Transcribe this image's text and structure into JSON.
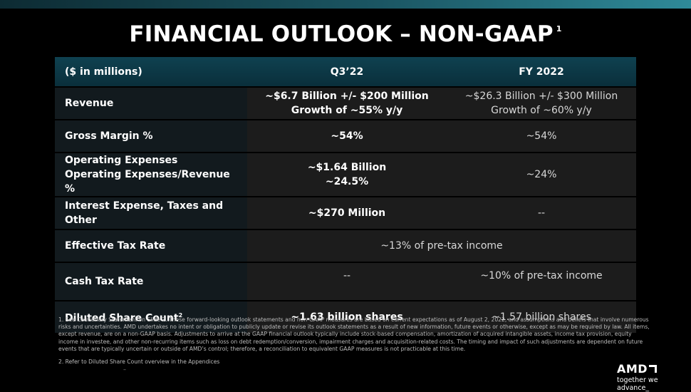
{
  "slide": {
    "title": "FINANCIAL OUTLOOK – NON-GAAP",
    "title_footnote_marker": "1"
  },
  "table": {
    "headers": [
      "($ in millions)",
      "Q3’22",
      "FY 2022"
    ],
    "rows": [
      {
        "label": [
          "Revenue"
        ],
        "q3": [
          "~$6.7 Billion +/- $200 Million",
          "Growth of ~55% y/y"
        ],
        "fy": [
          "~$26.3 Billion +/- $300 Million",
          "Growth of ~60% y/y"
        ]
      },
      {
        "label": [
          "Gross Margin %"
        ],
        "q3": [
          "~54%"
        ],
        "fy": [
          "~54%"
        ]
      },
      {
        "label": [
          "Operating Expenses",
          "Operating Expenses/Revenue %"
        ],
        "q3": [
          "~$1.64 Billion",
          "~24.5%"
        ],
        "fy": [
          "~24%"
        ]
      },
      {
        "label": [
          "Interest Expense, Taxes and Other"
        ],
        "q3": [
          "~$270 Million"
        ],
        "fy": [
          "--"
        ]
      },
      {
        "label": [
          "Effective Tax Rate"
        ],
        "merged": "~13% of pre-tax income"
      },
      {
        "label": [
          "Cash Tax Rate"
        ],
        "q3": [
          "--"
        ],
        "fy": [
          "~10% of pre-tax income"
        ]
      },
      {
        "label": [
          "Diluted Share Count"
        ],
        "label_footnote": "2",
        "q3": [
          "~1.63 billion shares"
        ],
        "fy": [
          "~1.57 billion shares"
        ]
      }
    ]
  },
  "footnotes": [
    "1.  See Cautionary Statement on Slide 2. These forward-looking outlook statements and non-GAAP measures are based on current expectations as of August 2, 2022, and assumptions and beliefs that involve numerous risks and uncertainties. AMD undertakes no intent or obligation to publicly update or revise its outlook statements as a result of new information, future events or otherwise, except as may be required by law. All items, except revenue, are on a non-GAAP basis. Adjustments to arrive at the GAAP financial outlook typically include stock-based compensation, amortization of acquired intangible assets, income tax provision, equity income in investee, and other non-recurring items such as loss on debt redemption/conversion, impairment charges and acquisition-related costs. The timing and impact of such adjustments are dependent on future events that are typically uncertain or outside of AMD’s control; therefore, a reconciliation to equivalent GAAP measures is not practicable at this time.",
    "2.  Refer to Diluted Share Count overview in the Appendices"
  ],
  "footer_mark": "–",
  "logo": {
    "name": "AMD",
    "tagline": "together we advance_"
  }
}
